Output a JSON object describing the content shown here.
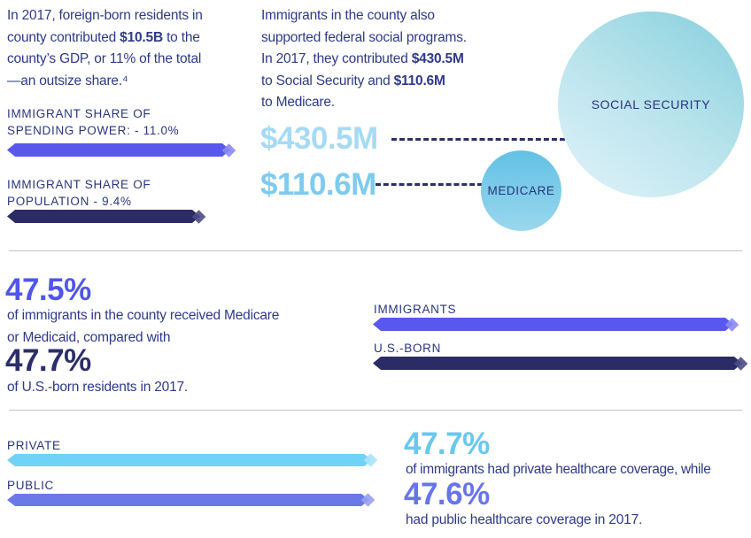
{
  "palette": {
    "body_navy": "#2E3A88",
    "label_navy": "#2A357E",
    "periwinkle": "#5857EE",
    "dark_navy": "#2B2B66",
    "sky_light": "#A6DAF4",
    "sky_mid": "#7ECBEF",
    "sky_bar": "#70D2F6",
    "blue_violet": "#6B79E6",
    "divider_gray": "#C3C3C3",
    "bubble_teal": "#85D0DC",
    "bubble_blue": "#62C1E5"
  },
  "gdp": {
    "paragraph": [
      [
        {
          "t": "In 2017, foreign-born residents in"
        }
      ],
      [
        {
          "t": "county contributed "
        },
        {
          "t": "$10.5B",
          "b": 1
        },
        {
          "t": " to the"
        }
      ],
      [
        {
          "t": "county’s GDP, or 11% of the total"
        }
      ],
      [
        {
          "t": "—an outsize share.⁴"
        }
      ]
    ],
    "spending_label_lines": [
      "IMMIGRANT SHARE OF",
      "SPENDING POWER: - 11.0%"
    ],
    "population_label_lines": [
      "IMMIGRANT SHARE OF",
      "POPULATION - 9.4%"
    ]
  },
  "federal": {
    "paragraph": [
      [
        {
          "t": "Immigrants in the county also"
        }
      ],
      [
        {
          "t": "supported federal social programs."
        }
      ],
      [
        {
          "t": "In 2017, they contributed "
        },
        {
          "t": "$430.5M",
          "b": 1
        }
      ],
      [
        {
          "t": "to Social Security and "
        },
        {
          "t": "$110.6M",
          "b": 1
        }
      ],
      [
        {
          "t": "to Medicare."
        }
      ]
    ],
    "social_security": {
      "amount": "$430.5M",
      "label": "SOCIAL SECURITY"
    },
    "medicare": {
      "amount": "$110.6M",
      "label": "MEDICARE"
    }
  },
  "medicaid": {
    "immigrants_pct": "47.5%",
    "description_lines": [
      "of immigrants in the county received Medicare",
      "or Medicaid, compared with"
    ],
    "usborn_pct": "47.7%",
    "usborn_line": "of U.S.-born residents in 2017.",
    "immigrants_label": "IMMIGRANTS",
    "usborn_label": "U.S.-BORN"
  },
  "coverage": {
    "private_label": "PRIVATE",
    "public_label": "PUBLIC",
    "private_pct": "47.7%",
    "private_line": "of immigrants had private healthcare coverage, while",
    "public_pct": "47.6%",
    "public_line": "had public healthcare coverage in 2017."
  },
  "chart_data": [
    {
      "type": "bar",
      "orientation": "horizontal",
      "title": "Immigrant share of spending power vs population (2017)",
      "categories": [
        "Immigrant share of spending power",
        "Immigrant share of population"
      ],
      "values": [
        11.0,
        9.4
      ],
      "unit": "%",
      "colors": [
        "#5857EE",
        "#2B2B66"
      ],
      "grid": false,
      "legend": "none"
    },
    {
      "type": "bar",
      "rendered_as": "proportional-bubbles",
      "title": "2017 immigrant contributions to federal social programs",
      "categories": [
        "Social Security",
        "Medicare"
      ],
      "values": [
        430.5,
        110.6
      ],
      "unit": "$M",
      "labels": [
        "$430.5M",
        "$110.6M"
      ],
      "colors": [
        "#85D0DC",
        "#62C1E5"
      ],
      "grid": false,
      "legend": "none"
    },
    {
      "type": "bar",
      "orientation": "horizontal",
      "title": "Received Medicare or Medicaid in 2017",
      "categories": [
        "Immigrants",
        "U.S.-born"
      ],
      "values": [
        47.5,
        47.7
      ],
      "unit": "%",
      "colors": [
        "#5857EE",
        "#2B2B66"
      ],
      "grid": false,
      "legend": "none"
    },
    {
      "type": "bar",
      "orientation": "horizontal",
      "title": "Immigrant healthcare coverage in 2017",
      "categories": [
        "Private",
        "Public"
      ],
      "values": [
        47.7,
        47.6
      ],
      "unit": "%",
      "colors": [
        "#70D2F6",
        "#6B79E6"
      ],
      "grid": false,
      "legend": "none"
    }
  ]
}
